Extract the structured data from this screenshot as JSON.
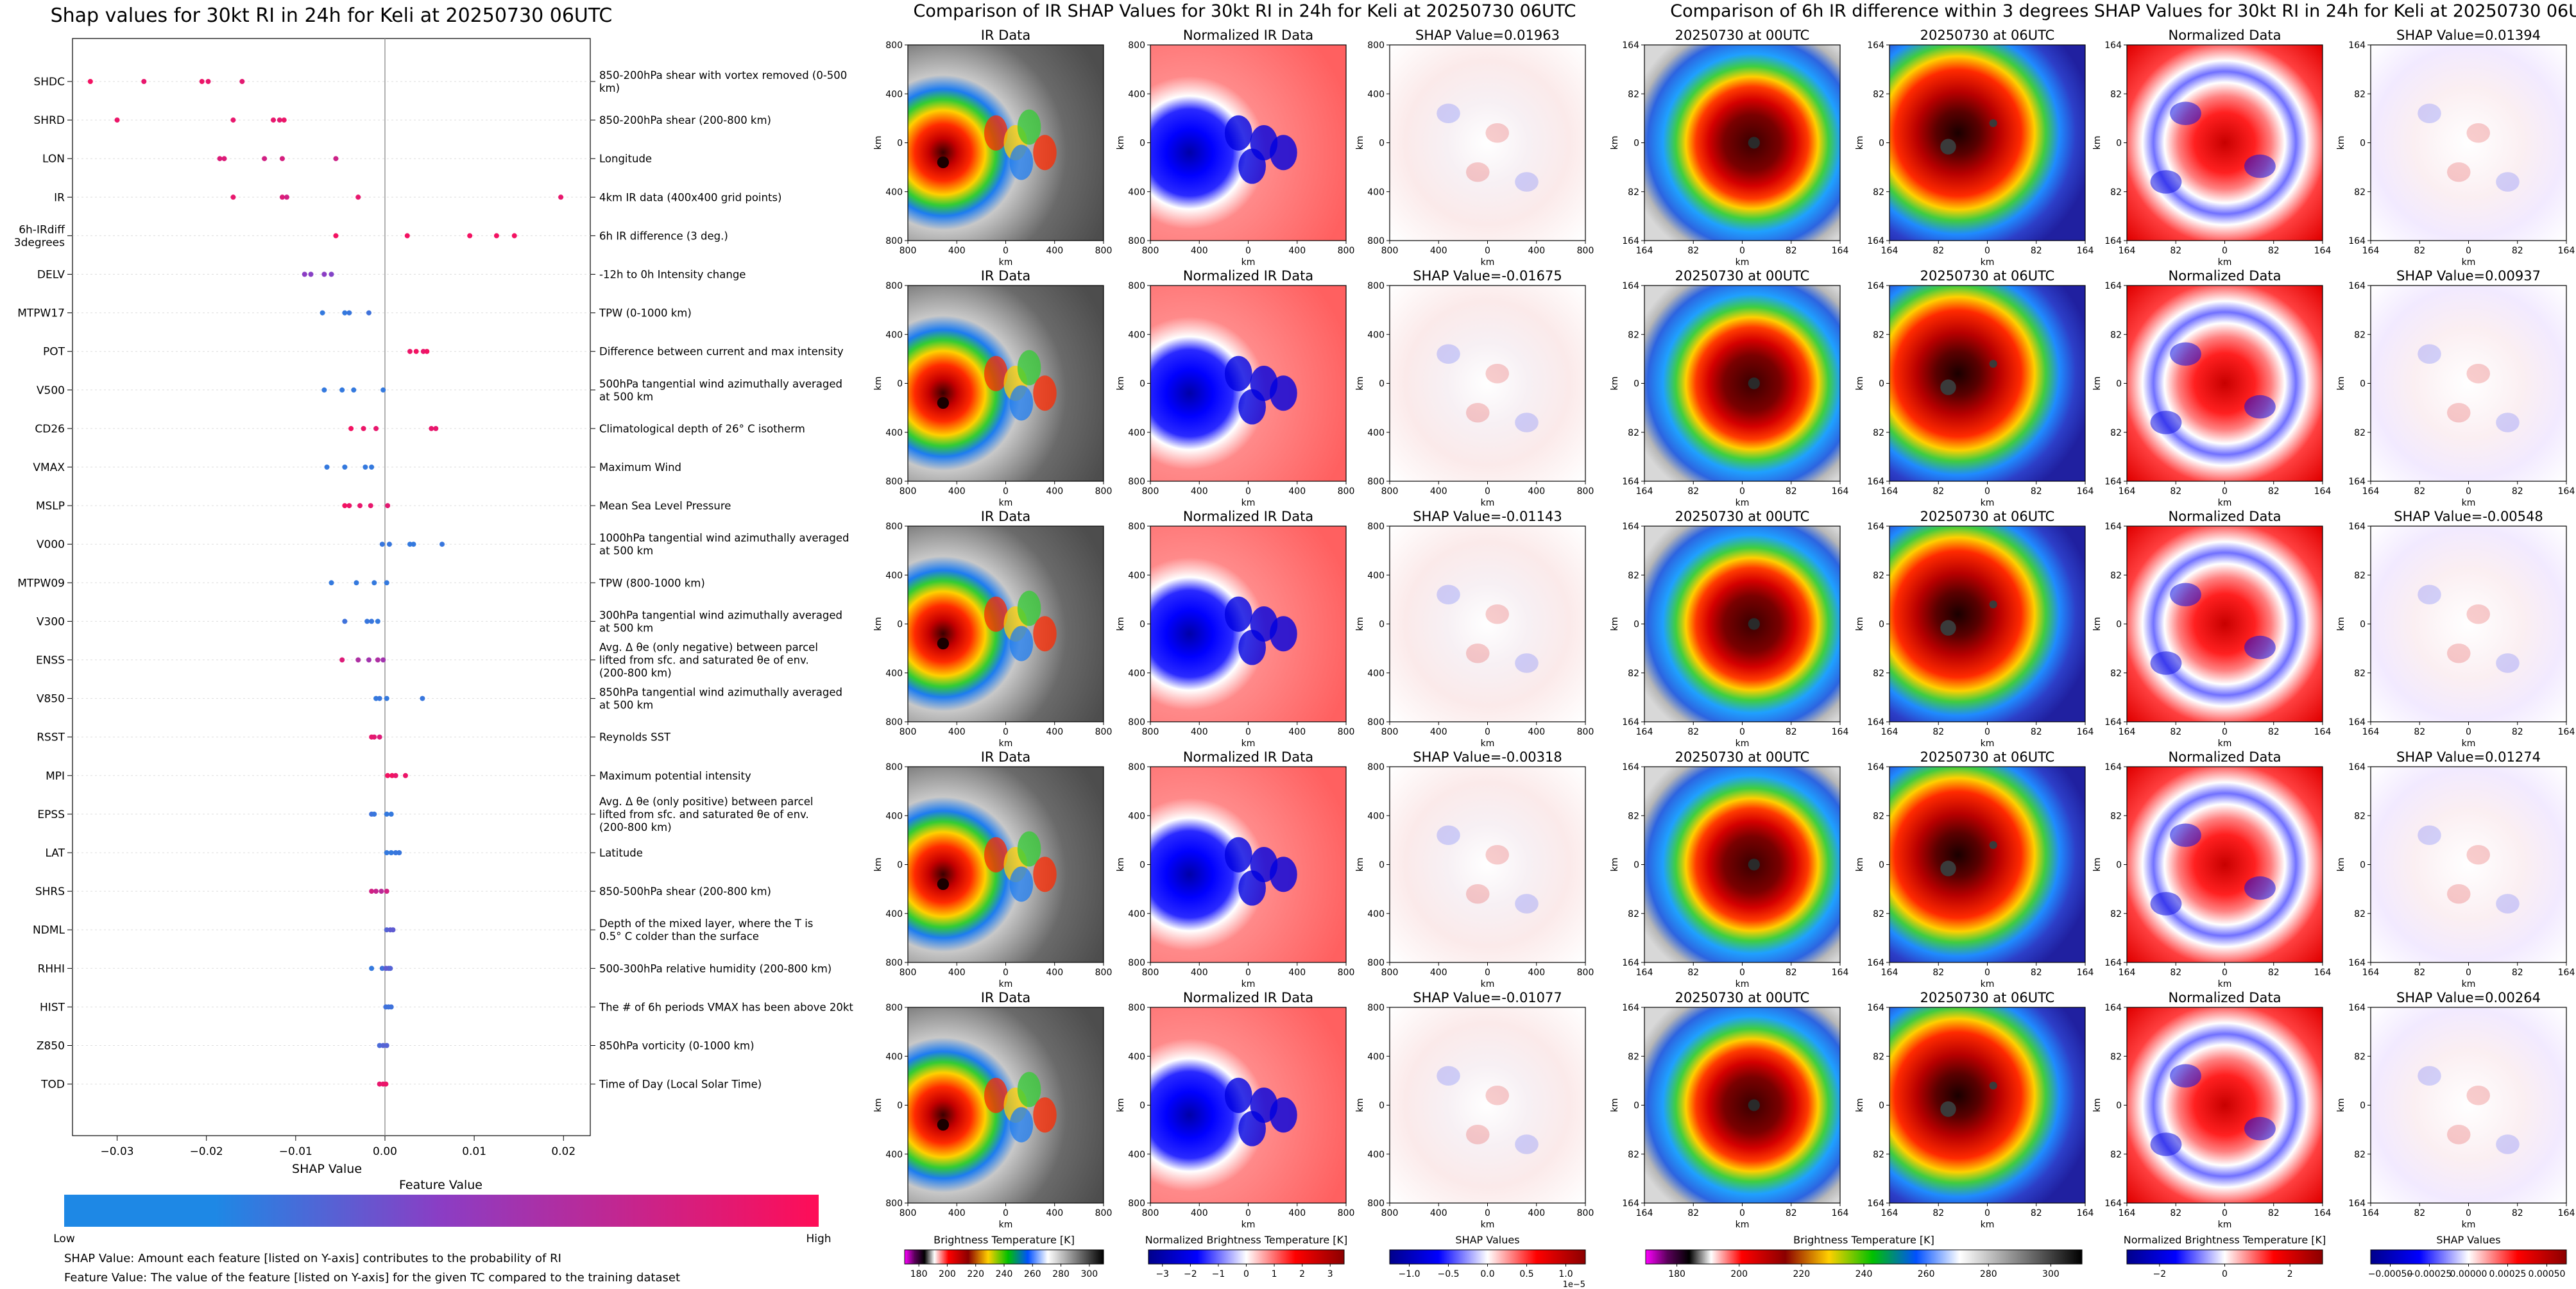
{
  "summary": {
    "title": "Shap values for 30kt RI in 24h for Keli at 20250730 06UTC",
    "xlabel": "SHAP Value",
    "xtick_labels": [
      "−0.03",
      "−0.02",
      "−0.01",
      "0.00",
      "0.01",
      "0.02"
    ],
    "colorbar_title": "Feature Value",
    "colorbar_low": "Low",
    "colorbar_high": "High",
    "note_shap": "SHAP Value: Amount each feature [listed on Y-axis] contributes to the probability of RI",
    "note_feature": "Feature Value: The value of the feature [listed on Y-axis] for the given TC compared to the training dataset",
    "colors": {
      "low": "#1e88e5",
      "mid": "#8b3dc4",
      "high": "#ff0d57"
    }
  },
  "chart_data": [
    {
      "type": "scatter",
      "title": "Shap values for 30kt RI in 24h for Keli at 20250730 06UTC",
      "xlabel": "SHAP Value",
      "xlim": [
        -0.035,
        0.023
      ],
      "grid": false,
      "features": [
        {
          "name": "SHDC",
          "desc": "850-200hPa shear with vortex removed (0-500 km)",
          "points": [
            [
              -0.033,
              0.95
            ],
            [
              -0.027,
              0.9
            ],
            [
              -0.0205,
              0.92
            ],
            [
              -0.0198,
              0.9
            ],
            [
              -0.016,
              0.88
            ]
          ]
        },
        {
          "name": "SHRD",
          "desc": "850-200hPa shear (200-800 km)",
          "points": [
            [
              -0.03,
              0.92
            ],
            [
              -0.017,
              0.9
            ],
            [
              -0.0125,
              0.9
            ],
            [
              -0.0118,
              0.88
            ],
            [
              -0.0113,
              0.92
            ]
          ]
        },
        {
          "name": "LON",
          "desc": "Longitude",
          "points": [
            [
              -0.0185,
              0.85
            ],
            [
              -0.018,
              0.85
            ],
            [
              -0.0135,
              0.8
            ],
            [
              -0.0115,
              0.82
            ],
            [
              -0.0055,
              0.78
            ]
          ]
        },
        {
          "name": "IR",
          "desc": "4km IR data (400x400 grid points)",
          "points": [
            [
              -0.017,
              0.9
            ],
            [
              -0.0115,
              0.85
            ],
            [
              -0.011,
              0.8
            ],
            [
              -0.003,
              0.9
            ],
            [
              0.0197,
              0.9
            ]
          ]
        },
        {
          "name": "6h-IRdiff\n3degrees",
          "desc": "6h IR difference (3 deg.)",
          "points": [
            [
              -0.0055,
              0.95
            ],
            [
              0.0025,
              0.95
            ],
            [
              0.0095,
              0.95
            ],
            [
              0.0125,
              0.95
            ],
            [
              0.0145,
              0.95
            ]
          ]
        },
        {
          "name": "DELV",
          "desc": "-12h to 0h Intensity change",
          "points": [
            [
              -0.009,
              0.5
            ],
            [
              -0.0083,
              0.48
            ],
            [
              -0.0068,
              0.5
            ],
            [
              -0.006,
              0.46
            ]
          ]
        },
        {
          "name": "MTPW17",
          "desc": "TPW (0-1000 km)",
          "points": [
            [
              -0.007,
              0.1
            ],
            [
              -0.0045,
              0.1
            ],
            [
              -0.004,
              0.12
            ],
            [
              -0.0018,
              0.15
            ]
          ]
        },
        {
          "name": "POT",
          "desc": "Difference between current and max intensity",
          "points": [
            [
              0.0028,
              0.92
            ],
            [
              0.0035,
              0.95
            ],
            [
              0.0043,
              0.9
            ],
            [
              0.0047,
              0.95
            ]
          ]
        },
        {
          "name": "V500",
          "desc": "500hPa tangential wind azimuthally averaged at 500 km",
          "points": [
            [
              -0.0068,
              0.1
            ],
            [
              -0.0048,
              0.1
            ],
            [
              -0.0035,
              0.1
            ],
            [
              -0.0002,
              0.1
            ]
          ]
        },
        {
          "name": "CD26",
          "desc": "Climatological depth of 26° C isotherm",
          "points": [
            [
              -0.0038,
              0.95
            ],
            [
              -0.0024,
              0.92
            ],
            [
              -0.001,
              0.9
            ],
            [
              0.0052,
              0.9
            ],
            [
              0.0057,
              0.9
            ]
          ]
        },
        {
          "name": "VMAX",
          "desc": "Maximum Wind",
          "points": [
            [
              -0.0065,
              0.1
            ],
            [
              -0.0045,
              0.1
            ],
            [
              -0.0022,
              0.1
            ],
            [
              -0.0015,
              0.1
            ]
          ]
        },
        {
          "name": "MSLP",
          "desc": "Mean Sea Level Pressure",
          "points": [
            [
              -0.0045,
              0.95
            ],
            [
              -0.004,
              0.92
            ],
            [
              -0.0028,
              0.9
            ],
            [
              -0.0016,
              0.9
            ],
            [
              0.0003,
              0.88
            ]
          ]
        },
        {
          "name": "V000",
          "desc": "1000hPa tangential wind azimuthally averaged at 500 km",
          "points": [
            [
              -0.0003,
              0.12
            ],
            [
              0.0005,
              0.12
            ],
            [
              0.0028,
              0.1
            ],
            [
              0.0032,
              0.1
            ],
            [
              0.0064,
              0.12
            ]
          ]
        },
        {
          "name": "MTPW09",
          "desc": "TPW (800-1000 km)",
          "points": [
            [
              -0.006,
              0.1
            ],
            [
              -0.0032,
              0.1
            ],
            [
              -0.0012,
              0.1
            ],
            [
              0.0002,
              0.1
            ]
          ]
        },
        {
          "name": "V300",
          "desc": "300hPa tangential wind azimuthally averaged at 500 km",
          "points": [
            [
              -0.0045,
              0.15
            ],
            [
              -0.002,
              0.12
            ],
            [
              -0.0015,
              0.12
            ],
            [
              -0.0008,
              0.1
            ]
          ]
        },
        {
          "name": "ENSS",
          "desc": "Avg. Δ θe (only negative) between parcel lifted from sfc. and saturated θe of env. (200-800 km)",
          "points": [
            [
              -0.0048,
              0.85
            ],
            [
              -0.003,
              0.65
            ],
            [
              -0.0018,
              0.6
            ],
            [
              -0.0008,
              0.65
            ],
            [
              -0.0002,
              0.6
            ]
          ]
        },
        {
          "name": "V850",
          "desc": "850hPa tangential wind azimuthally averaged at 500 km",
          "points": [
            [
              -0.001,
              0.1
            ],
            [
              -0.0006,
              0.12
            ],
            [
              0.0002,
              0.1
            ],
            [
              0.0042,
              0.12
            ]
          ]
        },
        {
          "name": "RSST",
          "desc": "Reynolds SST",
          "points": [
            [
              -0.0015,
              0.9
            ],
            [
              -0.0012,
              0.88
            ],
            [
              -0.0006,
              0.85
            ]
          ]
        },
        {
          "name": "MPI",
          "desc": "Maximum potential intensity",
          "points": [
            [
              0.0003,
              0.95
            ],
            [
              0.0008,
              0.95
            ],
            [
              0.0012,
              0.9
            ],
            [
              0.0023,
              0.92
            ]
          ]
        },
        {
          "name": "EPSS",
          "desc": "Avg. Δ θe (only positive) between parcel lifted from sfc. and saturated θe of env. (200-800 km)",
          "points": [
            [
              -0.0015,
              0.15
            ],
            [
              -0.0012,
              0.12
            ],
            [
              0.0002,
              0.1
            ],
            [
              0.0007,
              0.1
            ]
          ]
        },
        {
          "name": "LAT",
          "desc": "Latitude",
          "points": [
            [
              0.0002,
              0.1
            ],
            [
              0.0007,
              0.1
            ],
            [
              0.0012,
              0.12
            ],
            [
              0.0016,
              0.12
            ]
          ]
        },
        {
          "name": "SHRS",
          "desc": "850-500hPa shear (200-800 km)",
          "points": [
            [
              -0.0015,
              0.8
            ],
            [
              -0.001,
              0.75
            ],
            [
              -0.0004,
              0.7
            ],
            [
              0.0002,
              0.8
            ]
          ]
        },
        {
          "name": "NDML",
          "desc": "Depth of the mixed layer, where the T is 0.5° C colder than the surface",
          "points": [
            [
              0.0002,
              0.25
            ],
            [
              0.0006,
              0.3
            ],
            [
              0.0009,
              0.3
            ]
          ]
        },
        {
          "name": "RHHI",
          "desc": "500-300hPa relative humidity (200-800 km)",
          "points": [
            [
              -0.0015,
              0.1
            ],
            [
              -0.0003,
              0.15
            ],
            [
              0.0001,
              0.3
            ],
            [
              0.0004,
              0.3
            ],
            [
              0.0006,
              0.25
            ]
          ]
        },
        {
          "name": "HIST",
          "desc": "The # of 6h periods VMAX has been above 20kt",
          "points": [
            [
              0.0001,
              0.15
            ],
            [
              0.0004,
              0.15
            ],
            [
              0.0007,
              0.15
            ]
          ]
        },
        {
          "name": "Z850",
          "desc": "850hPa vorticity (0-1000 km)",
          "points": [
            [
              -0.0006,
              0.2
            ],
            [
              -0.0002,
              0.25
            ],
            [
              0.0002,
              0.25
            ]
          ]
        },
        {
          "name": "TOD",
          "desc": "Time of Day (Local Solar Time)",
          "points": [
            [
              -0.0006,
              0.9
            ],
            [
              -0.0002,
              0.9
            ],
            [
              0.0001,
              0.92
            ]
          ]
        }
      ]
    },
    {
      "type": "heatmap",
      "title": "Comparison of IR SHAP Values for 30kt RI in 24h for Keli at 20250730 06UTC",
      "columns": [
        {
          "key": "ir",
          "title": "IR Data",
          "cmap": "ir",
          "xlim": [
            -800,
            800
          ],
          "xtick_labels": [
            "800",
            "400",
            "0",
            "400",
            "800"
          ],
          "ytick_labels": [
            "800",
            "400",
            "0",
            "400",
            "800"
          ],
          "axis_label": "km"
        },
        {
          "key": "norm",
          "title": "Normalized IR Data",
          "cmap": "bwr",
          "xlim": [
            -800,
            800
          ],
          "xtick_labels": [
            "800",
            "400",
            "0",
            "400",
            "800"
          ],
          "ytick_labels": [
            "800",
            "400",
            "0",
            "400",
            "800"
          ],
          "axis_label": "km"
        },
        {
          "key": "shap",
          "title": "SHAP Value",
          "cmap": "bwr_light",
          "xlim": [
            -800,
            800
          ],
          "xtick_labels": [
            "800",
            "400",
            "0",
            "400",
            "800"
          ],
          "ytick_labels": [
            "800",
            "400",
            "0",
            "400",
            "800"
          ],
          "axis_label": "km"
        }
      ],
      "shap_values_per_row": [
        "0.01963",
        "-0.01675",
        "-0.01143",
        "-0.00318",
        "-0.01077"
      ],
      "colorbars": [
        {
          "label": "Brightness Temperature [K]",
          "ticks": [
            "180",
            "200",
            "220",
            "240",
            "260",
            "280",
            "300"
          ]
        },
        {
          "label": "Normalized Brightness Temperature [K]",
          "ticks": [
            "−3",
            "−2",
            "−1",
            "0",
            "1",
            "2",
            "3"
          ]
        },
        {
          "label": "SHAP Values",
          "ticks": [
            "−1.0",
            "−0.5",
            "0.0",
            "0.5",
            "1.0"
          ],
          "exponent": "1e−5"
        }
      ]
    },
    {
      "type": "heatmap",
      "title": "Comparison of 6h IR difference within 3 degrees SHAP Values for 30kt RI in 24h for Keli at 20250730 06UTC",
      "columns": [
        {
          "key": "t00",
          "title": "20250730 at 00UTC",
          "cmap": "ir"
        },
        {
          "key": "t06",
          "title": "20250730 at 06UTC",
          "cmap": "ir"
        },
        {
          "key": "ndiff",
          "title": "Normalized Data",
          "cmap": "bwr"
        },
        {
          "key": "shapd",
          "title": "SHAP Value",
          "cmap": "bwr_light"
        }
      ],
      "xtick_labels": [
        "164",
        "82",
        "0",
        "82",
        "164"
      ],
      "ytick_labels": [
        "164",
        "82",
        "0",
        "82",
        "164"
      ],
      "axis_label": "km",
      "shap_values_per_row": [
        "0.01394",
        "0.00937",
        "-0.00548",
        "0.01274",
        "0.00264"
      ],
      "colorbars": [
        {
          "label": "Brightness Temperature [K]",
          "ticks": [
            "180",
            "200",
            "220",
            "240",
            "260",
            "280",
            "300"
          ]
        },
        {
          "label": "Normalized Brightness Temperature [K]",
          "ticks": [
            "−2",
            "0",
            "2"
          ]
        },
        {
          "label": "SHAP Values",
          "ticks": [
            "−0.00050",
            "−0.00025",
            "0.00000",
            "0.00025",
            "0.00050"
          ]
        }
      ]
    }
  ]
}
